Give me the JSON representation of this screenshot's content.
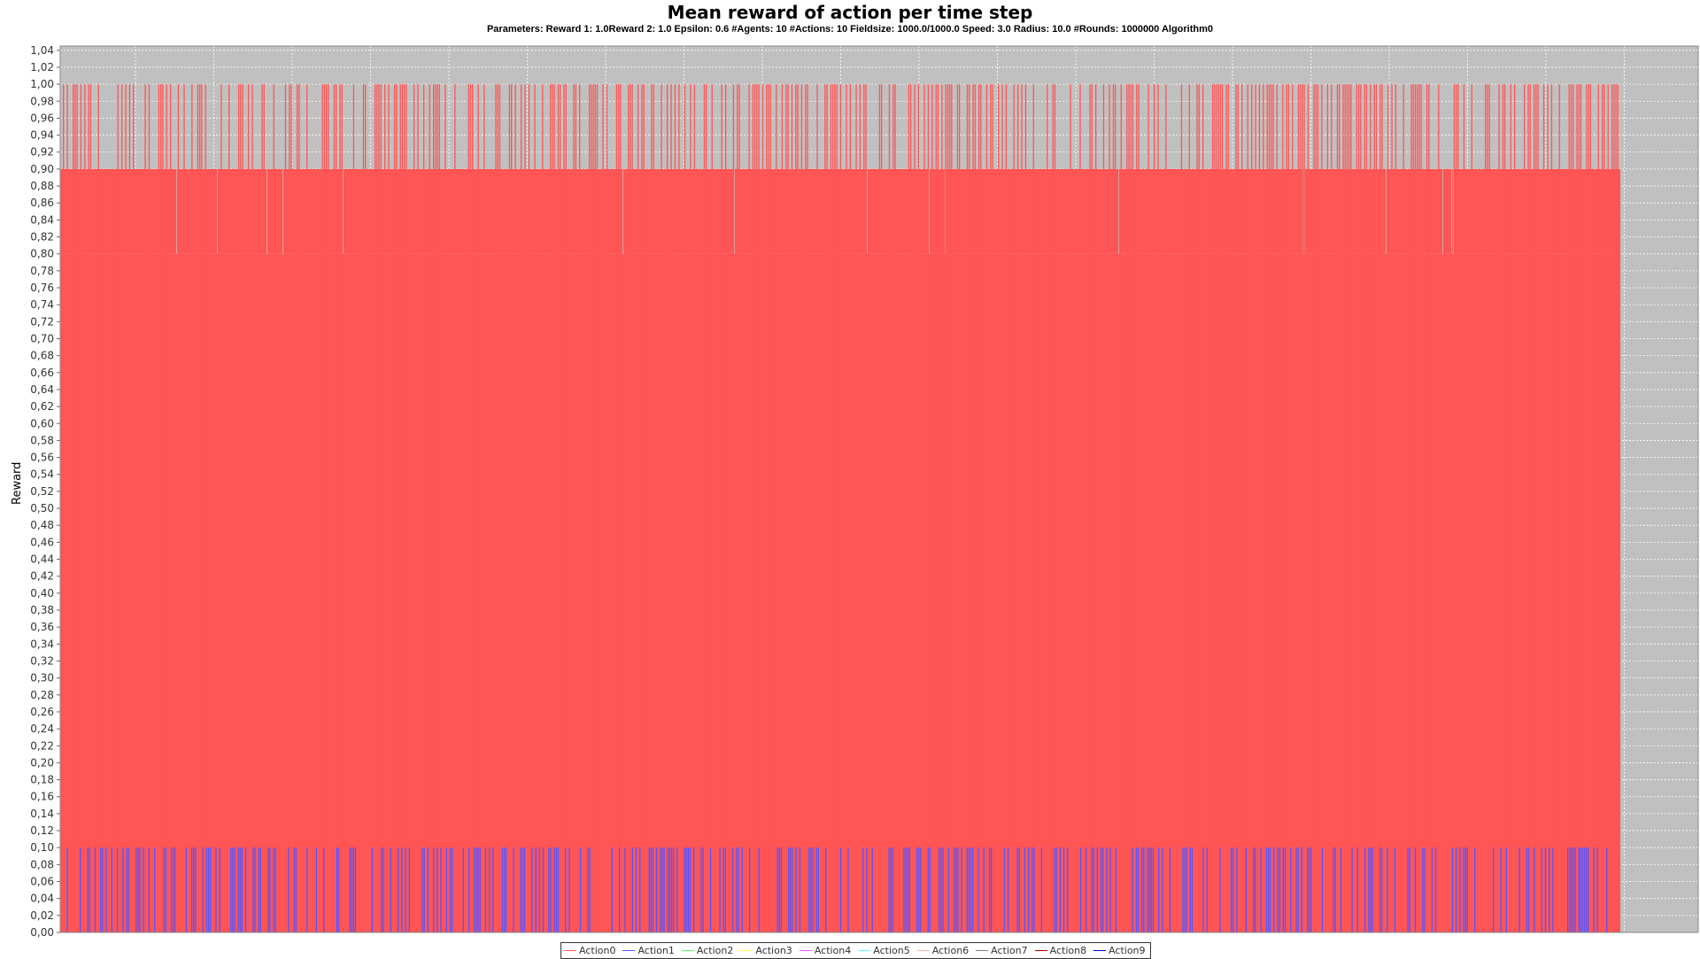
{
  "chart_data": {
    "type": "bar",
    "title": "Mean reward of action per time step",
    "subtitle": "Parameters: Reward 1: 1.0Reward 2: 1.0 Epsilon: 0.6 #Agents: 10 #Actions: 10 Fieldsize: 1000.0/1000.0 Speed: 3.0 Radius: 10.0 #Rounds: 1000000 Algorithm0",
    "xlabel": "",
    "ylabel": "Reward",
    "ylim": [
      0,
      1.045
    ],
    "y_ticks": [
      "0,00",
      "0,02",
      "0,04",
      "0,06",
      "0,08",
      "0,10",
      "0,12",
      "0,14",
      "0,16",
      "0,18",
      "0,20",
      "0,22",
      "0,24",
      "0,26",
      "0,28",
      "0,30",
      "0,32",
      "0,34",
      "0,36",
      "0,38",
      "0,40",
      "0,42",
      "0,44",
      "0,46",
      "0,48",
      "0,50",
      "0,52",
      "0,54",
      "0,56",
      "0,58",
      "0,60",
      "0,62",
      "0,64",
      "0,66",
      "0,68",
      "0,70",
      "0,72",
      "0,74",
      "0,76",
      "0,78",
      "0,80",
      "0,82",
      "0,84",
      "0,86",
      "0,88",
      "0,90",
      "0,92",
      "0,94",
      "0,96",
      "0,98",
      "1,00",
      "1,02",
      "1,04"
    ],
    "grid": true,
    "legend_position": "bottom",
    "series": [
      {
        "name": "Action0",
        "color": "#ff5555",
        "level_values": [
          0.8,
          0.9,
          1.0
        ]
      },
      {
        "name": "Action1",
        "color": "#5555ff",
        "level_values": [
          0.1
        ]
      },
      {
        "name": "Action2",
        "color": "#55ff55"
      },
      {
        "name": "Action3",
        "color": "#ffff55"
      },
      {
        "name": "Action4",
        "color": "#ff55ff"
      },
      {
        "name": "Action5",
        "color": "#55ffff"
      },
      {
        "name": "Action6",
        "color": "#ffafaf"
      },
      {
        "name": "Action7",
        "color": "#808080"
      },
      {
        "name": "Action8",
        "color": "#c00000"
      },
      {
        "name": "Action9",
        "color": "#0000c0"
      }
    ],
    "colors": {
      "plot_background": "#c0c0c0",
      "gridline": "#ffffff"
    }
  }
}
